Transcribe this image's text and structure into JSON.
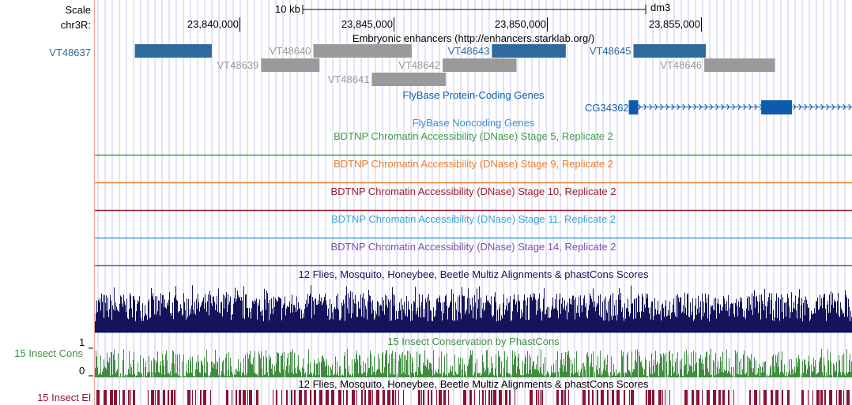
{
  "ruler": {
    "scale_label": "Scale",
    "scale_bar_label": "10 kb",
    "assembly": "dm3",
    "chrom_label": "chr3R:",
    "positions": [
      {
        "label": "23,840,000",
        "value": 23840000
      },
      {
        "label": "23,845,000",
        "value": 23845000
      },
      {
        "label": "23,850,000",
        "value": 23850000
      },
      {
        "label": "23,855,000",
        "value": 23855000
      }
    ]
  },
  "view": {
    "start": 23835300,
    "end": 23859900
  },
  "tracks": {
    "enhancers": {
      "title": "Embryonic enhancers (http://enhancers.starklab.org/)",
      "side_label": "VT48637",
      "color_selected": "#2e6a9e",
      "color_other": "#9a9a9a",
      "items": [
        {
          "name": "VT48637",
          "start": 23836600,
          "end": 23839100,
          "row": 0,
          "selected": true,
          "label_side": "left"
        },
        {
          "name": "VT48640",
          "start": 23842400,
          "end": 23845600,
          "row": 0,
          "selected": false
        },
        {
          "name": "VT48643",
          "start": 23848200,
          "end": 23850600,
          "row": 0,
          "selected": true
        },
        {
          "name": "VT48645",
          "start": 23852800,
          "end": 23855150,
          "row": 0,
          "selected": true
        },
        {
          "name": "VT48639",
          "start": 23840700,
          "end": 23842600,
          "row": 1,
          "selected": false
        },
        {
          "name": "VT48642",
          "start": 23846600,
          "end": 23849000,
          "row": 1,
          "selected": false
        },
        {
          "name": "VT48646",
          "start": 23855100,
          "end": 23857400,
          "row": 1,
          "selected": false
        },
        {
          "name": "VT48641",
          "start": 23844300,
          "end": 23846700,
          "row": 2,
          "selected": false
        }
      ]
    },
    "genes": {
      "title": "FlyBase Protein-Coding Genes",
      "color": "#0d5cab",
      "gene_name": "CG34362",
      "exons": [
        [
          23852650,
          23852950
        ],
        [
          23856950,
          23857950
        ]
      ],
      "intron_end": 23859900
    },
    "noncoding": {
      "title": "FlyBase Noncoding Genes",
      "color": "#3b8fd1"
    },
    "dnase": [
      {
        "title": "BDTNP Chromatin Accessibility (DNase) Stage 5, Replicate 2",
        "color": "#3f9e44"
      },
      {
        "title": "BDTNP Chromatin Accessibility (DNase) Stage 9, Replicate 2",
        "color": "#ee7d2a"
      },
      {
        "title": "BDTNP Chromatin Accessibility (DNase) Stage 10, Replicate 2",
        "color": "#9b1c31"
      },
      {
        "title": "BDTNP Chromatin Accessibility (DNase) Stage 11, Replicate 2",
        "color": "#3aa3d6"
      },
      {
        "title": "BDTNP Chromatin Accessibility (DNase) Stage 14, Replicate 2",
        "color": "#7b4eb0"
      }
    ],
    "multiz": {
      "title": "12 Flies, Mosquito, Honeybee, Beetle Multiz Alignments & phastCons Scores",
      "color": "#14145c"
    },
    "phastcons": {
      "title": "15 Insect Conservation by PhastCons",
      "side_label": "15 Insect Cons",
      "ymax_label": "1",
      "ymin_label": "0",
      "color": "#3f8e3f"
    },
    "elements": {
      "title": "12 Flies, Mosquito, Honeybee, Beetle Multiz Alignments & phastCons Scores",
      "side_label": "15 Insect El",
      "color": "#8a1235"
    }
  },
  "colors": {
    "guide_lines": "#c9c9ee",
    "left_border": "#f0a0a0"
  }
}
